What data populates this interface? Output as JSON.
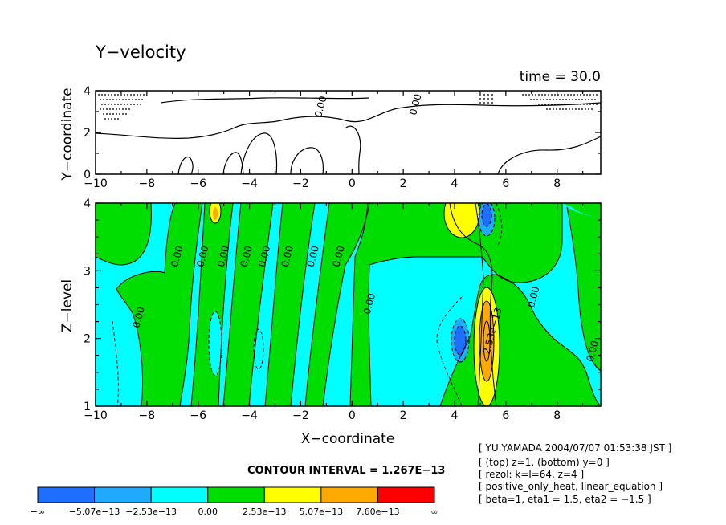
{
  "title": "Y−velocity",
  "time_label": "time = 30.0",
  "contour_interval": "CONTOUR INTERVAL = 1.267E−13",
  "info_lines": [
    "[ YU.YAMADA 2004/07/07 01:53:38 JST ]",
    "[ (top) z=1, (bottom) y=0 ]",
    "[ rezol: k=l=64, z=4 ]",
    "[ positive_only_heat, linear_equation ]",
    "[ beta=1, eta1 = 1.5, eta2 = −1.5 ]"
  ],
  "colors": {
    "neg_strong": "#1e6eff",
    "neg_mid": "#1eaaff",
    "neg_weak": "#00ffff",
    "pos_weak": "#00dd00",
    "pos_mid": "#ffff00",
    "pos_strong": "#ffaa00",
    "pos_max": "#ff0000",
    "line": "#000000"
  },
  "chart_data": [
    {
      "type": "contour",
      "panel": "top",
      "title": "",
      "xlabel": "",
      "ylabel": "Y−coordinate",
      "xlim": [
        -10,
        9.7
      ],
      "ylim": [
        0,
        4
      ],
      "x_ticks": [
        "−10",
        "−8",
        "−6",
        "−4",
        "−2",
        "0",
        "2",
        "4",
        "6",
        "8"
      ],
      "x_tick_values": [
        -10,
        -8,
        -6,
        -4,
        -2,
        0,
        2,
        4,
        6,
        8
      ],
      "y_ticks": [
        "0",
        "2",
        "4"
      ],
      "y_tick_values": [
        0,
        2,
        4
      ],
      "contour_labels": [
        {
          "text": "0.00",
          "x": -1.1,
          "y": 3.2
        },
        {
          "text": "0.00",
          "x": 2.6,
          "y": 3.3
        }
      ],
      "filled": false
    },
    {
      "type": "contour",
      "panel": "bottom",
      "title": "",
      "xlabel": "X−coordinate",
      "ylabel": "Z−level",
      "xlim": [
        -10,
        9.7
      ],
      "ylim": [
        1,
        4
      ],
      "x_ticks": [
        "−10",
        "−8",
        "−6",
        "−4",
        "−2",
        "0",
        "2",
        "4",
        "6",
        "8"
      ],
      "x_tick_values": [
        -10,
        -8,
        -6,
        -4,
        -2,
        0,
        2,
        4,
        6,
        8
      ],
      "y_ticks": [
        "1",
        "2",
        "3",
        "4"
      ],
      "y_tick_values": [
        1,
        2,
        3,
        4
      ],
      "contour_labels": [
        {
          "text": "0.00",
          "x": -8.2,
          "y": 2.3
        },
        {
          "text": "0.00",
          "x": -6.7,
          "y": 3.2
        },
        {
          "text": "0.00",
          "x": -5.7,
          "y": 3.2
        },
        {
          "text": "0.00",
          "x": -4.9,
          "y": 3.2
        },
        {
          "text": "0.00",
          "x": -4.0,
          "y": 3.2
        },
        {
          "text": "0.00",
          "x": -3.3,
          "y": 3.2
        },
        {
          "text": "0.00",
          "x": -2.4,
          "y": 3.2
        },
        {
          "text": "0.00",
          "x": -1.4,
          "y": 3.2
        },
        {
          "text": "0.00",
          "x": -0.4,
          "y": 3.2
        },
        {
          "text": "0.00",
          "x": 0.8,
          "y": 2.5
        },
        {
          "text": "2.53e−13",
          "x": 5.6,
          "y": 2.1
        },
        {
          "text": "0.00",
          "x": 7.2,
          "y": 2.6
        },
        {
          "text": "0.00",
          "x": 9.5,
          "y": 1.8
        }
      ],
      "filled": true
    }
  ],
  "colorbar": {
    "label": "",
    "boundaries": [
      "−∞",
      "−5.07e−13",
      "−2.53e−13",
      "0.00",
      "2.53e−13",
      "5.07e−13",
      "7.60e−13",
      "∞"
    ],
    "boundary_values": [
      null,
      -5.07e-13,
      -2.53e-13,
      0.0,
      2.53e-13,
      5.07e-13,
      7.6e-13,
      null
    ],
    "bin_colors": [
      "#1e6eff",
      "#1eaaff",
      "#00ffff",
      "#00dd00",
      "#ffff00",
      "#ffaa00",
      "#ff0000"
    ]
  }
}
